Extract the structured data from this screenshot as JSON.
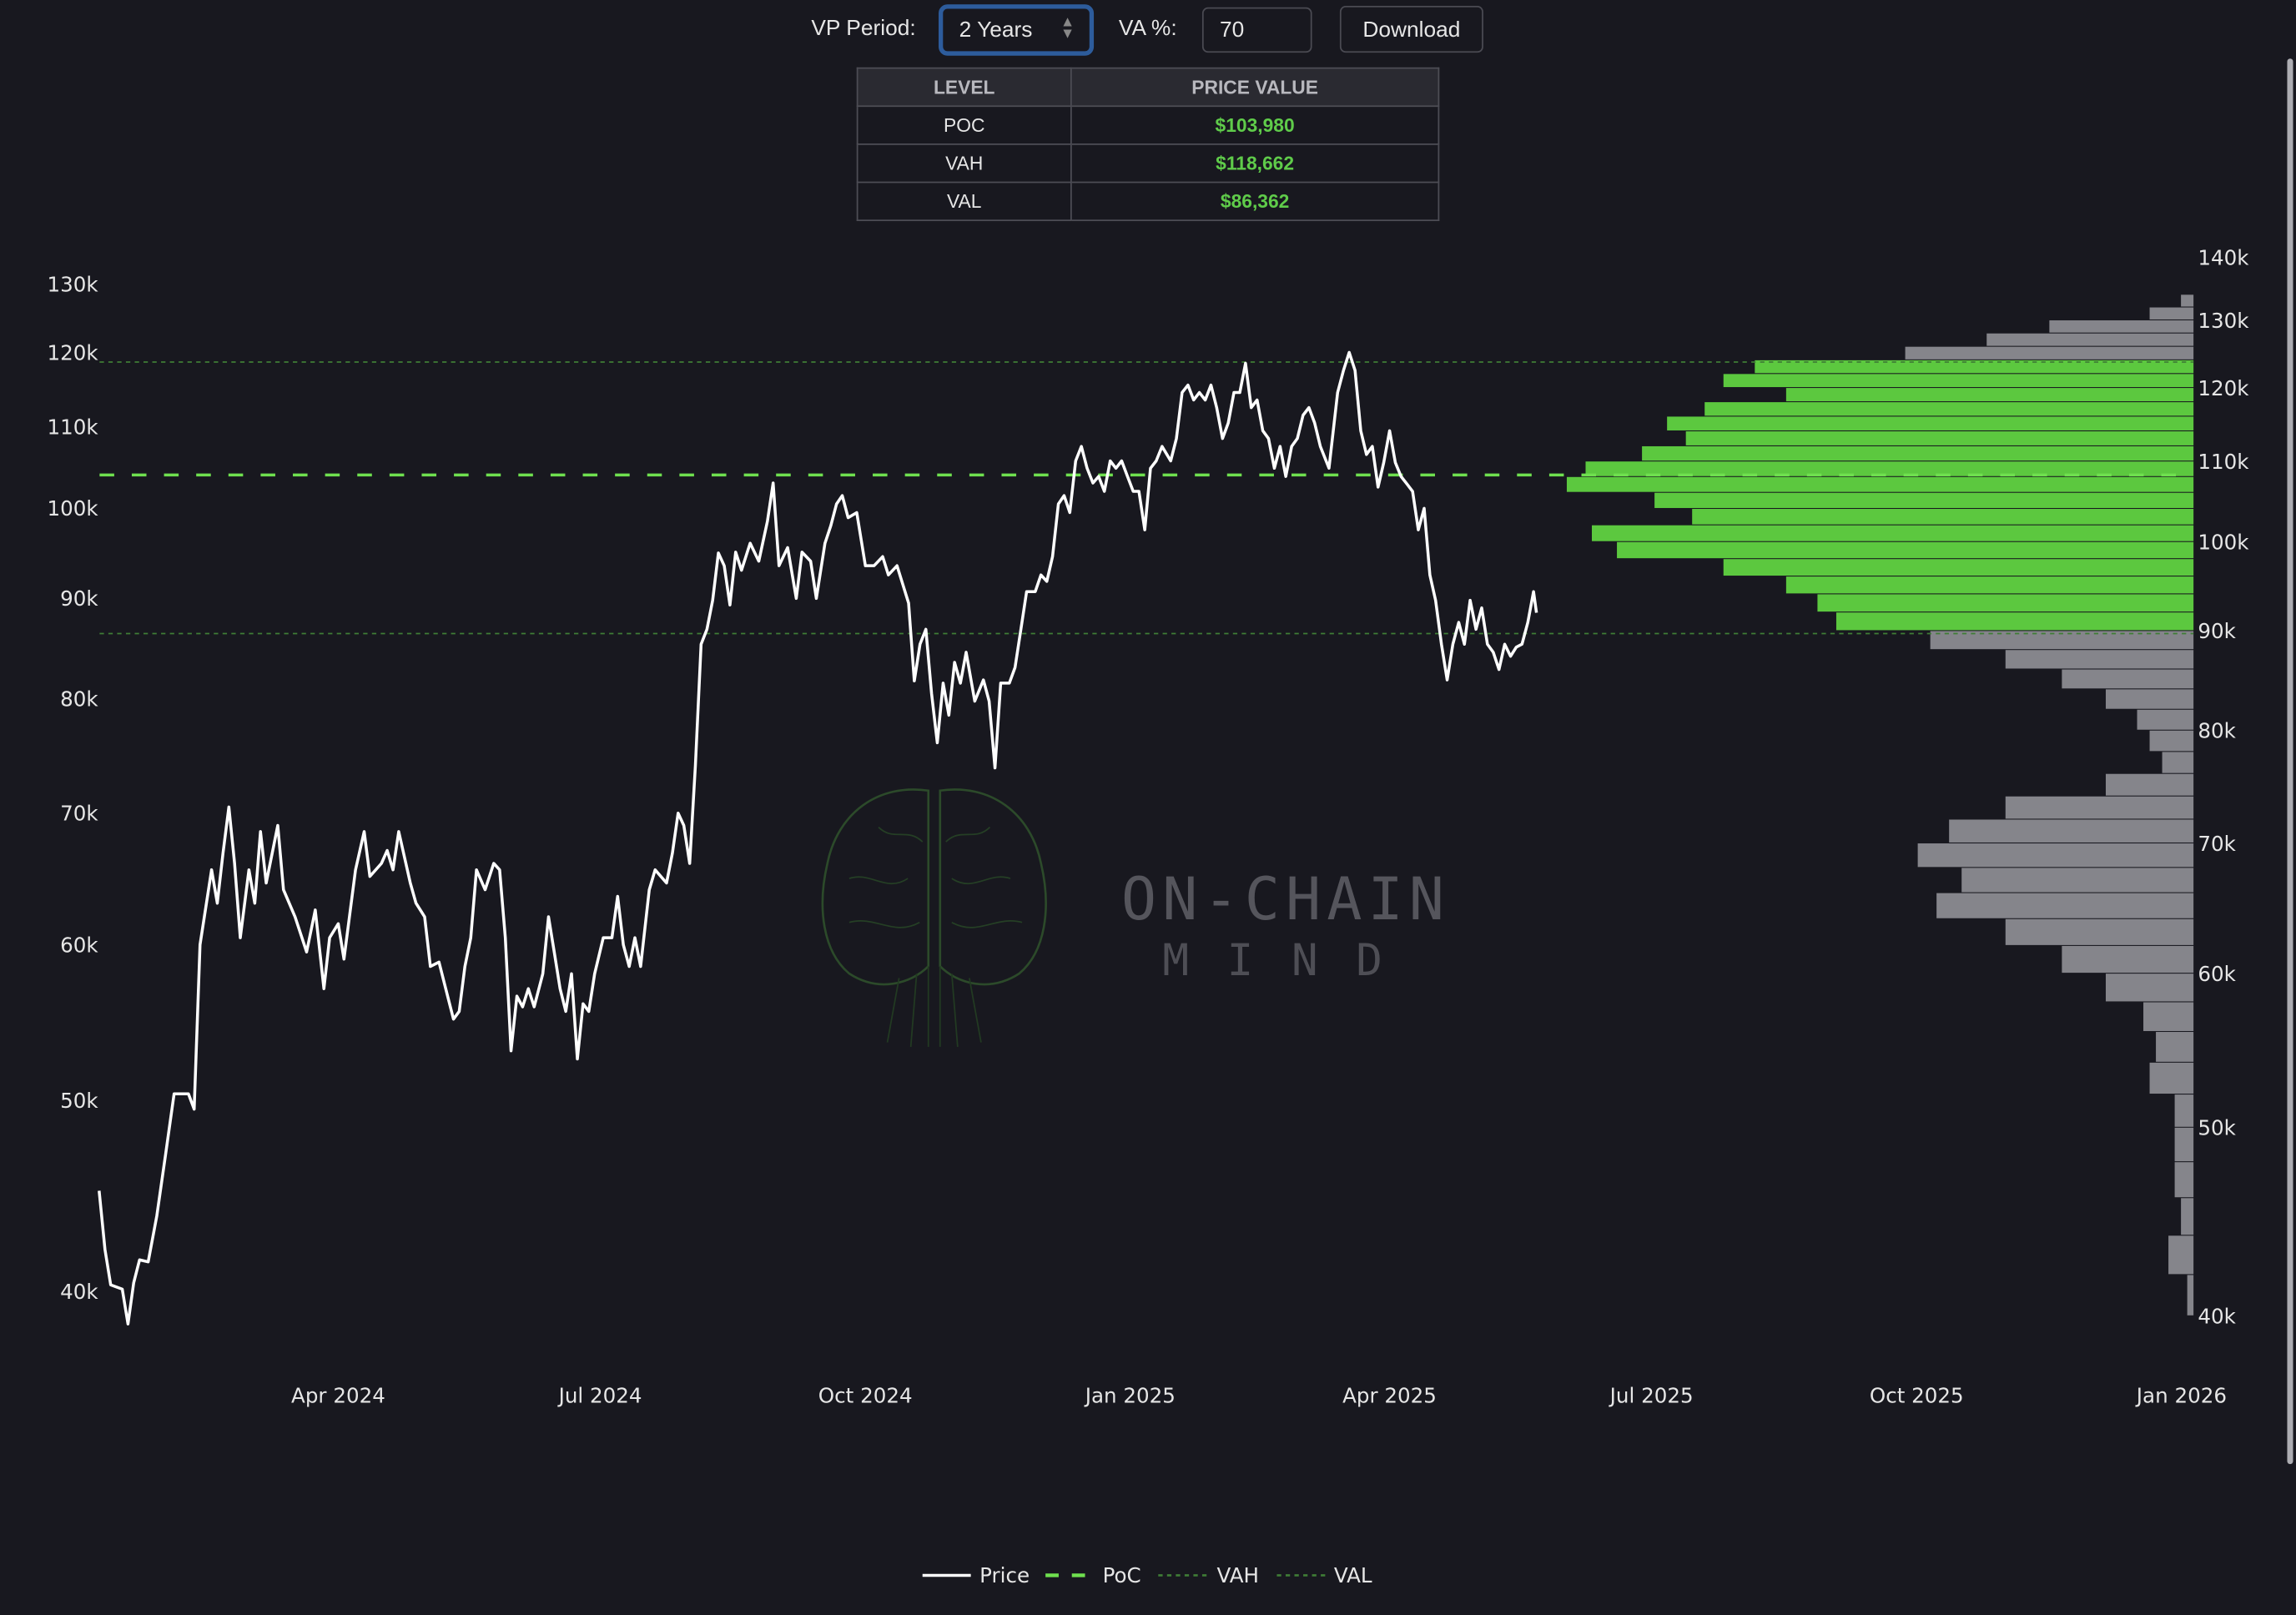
{
  "controls": {
    "vp_period_label": "VP Period:",
    "vp_period_value": "2 Years",
    "va_label": "VA %:",
    "va_value": "70",
    "download_label": "Download"
  },
  "levels_table": {
    "headers": [
      "LEVEL",
      "PRICE VALUE"
    ],
    "rows": [
      {
        "level": "POC",
        "value": "$103,980"
      },
      {
        "level": "VAH",
        "value": "$118,662"
      },
      {
        "level": "VAL",
        "value": "$86,362"
      }
    ]
  },
  "watermark": {
    "line1": "ON-CHAIN",
    "line2": "MIND"
  },
  "colors": {
    "background": "#18181f",
    "price": "#ffffff",
    "poc": "#6fe04f",
    "va_lines": "#3f7d36",
    "value_area": "#5cc83f",
    "profile_outside": "#85858b",
    "value_text": "#5fcb4a",
    "select_focus": "#2d5c9c"
  },
  "chart_data": {
    "type": "line",
    "title": "",
    "y_scale": "log",
    "left_axis": {
      "ticks": [
        40000,
        50000,
        60000,
        70000,
        80000,
        90000,
        100000,
        110000,
        120000,
        130000
      ],
      "tick_labels": [
        "40k",
        "50k",
        "60k",
        "70k",
        "80k",
        "90k",
        "100k",
        "110k",
        "120k",
        "130k"
      ]
    },
    "right_axis": {
      "ticks": [
        40000,
        50000,
        60000,
        70000,
        80000,
        90000,
        100000,
        110000,
        120000,
        130000,
        140000
      ],
      "tick_labels": [
        "40k",
        "50k",
        "60k",
        "70k",
        "80k",
        "90k",
        "100k",
        "110k",
        "120k",
        "130k",
        "140k"
      ]
    },
    "x_axis": {
      "ticks": [
        "2024-04-01",
        "2024-07-01",
        "2024-10-01",
        "2025-01-01",
        "2025-04-01",
        "2025-07-01",
        "2025-10-01",
        "2026-01-01"
      ],
      "tick_labels": [
        "Apr 2024",
        "Jul 2024",
        "Oct 2024",
        "Jan 2025",
        "Apr 2025",
        "Jul 2025",
        "Oct 2025",
        "Jan 2026"
      ]
    },
    "legend": {
      "placement": "bottom",
      "entries": [
        "Price",
        "PoC",
        "VAH",
        "VAL"
      ]
    },
    "levels": {
      "poc": 103980,
      "vah": 118662,
      "val": 86362
    },
    "price": [
      [
        "2024-01-09",
        45000
      ],
      [
        "2024-01-11",
        42000
      ],
      [
        "2024-01-13",
        40300
      ],
      [
        "2024-01-17",
        40100
      ],
      [
        "2024-01-19",
        38500
      ],
      [
        "2024-01-21",
        40400
      ],
      [
        "2024-01-23",
        41500
      ],
      [
        "2024-01-26",
        41400
      ],
      [
        "2024-01-29",
        43700
      ],
      [
        "2024-02-01",
        46900
      ],
      [
        "2024-02-04",
        50400
      ],
      [
        "2024-02-09",
        50400
      ],
      [
        "2024-02-11",
        49500
      ],
      [
        "2024-02-13",
        60000
      ],
      [
        "2024-02-17",
        65500
      ],
      [
        "2024-02-19",
        63000
      ],
      [
        "2024-02-21",
        66800
      ],
      [
        "2024-02-23",
        70500
      ],
      [
        "2024-02-25",
        66000
      ],
      [
        "2024-02-27",
        60500
      ],
      [
        "2024-03-01",
        65500
      ],
      [
        "2024-03-03",
        63000
      ],
      [
        "2024-03-05",
        68500
      ],
      [
        "2024-03-07",
        64500
      ],
      [
        "2024-03-11",
        69000
      ],
      [
        "2024-03-13",
        64000
      ],
      [
        "2024-03-17",
        62000
      ],
      [
        "2024-03-21",
        59500
      ],
      [
        "2024-03-24",
        62500
      ],
      [
        "2024-03-27",
        57000
      ],
      [
        "2024-03-29",
        60500
      ],
      [
        "2024-04-01",
        61500
      ],
      [
        "2024-04-03",
        59000
      ],
      [
        "2024-04-07",
        65500
      ],
      [
        "2024-04-10",
        68500
      ],
      [
        "2024-04-12",
        65000
      ],
      [
        "2024-04-16",
        66000
      ],
      [
        "2024-04-18",
        67000
      ],
      [
        "2024-04-20",
        65500
      ],
      [
        "2024-04-22",
        68500
      ],
      [
        "2024-04-26",
        64500
      ],
      [
        "2024-04-28",
        63000
      ],
      [
        "2024-05-01",
        62000
      ],
      [
        "2024-05-03",
        58500
      ],
      [
        "2024-05-06",
        58800
      ],
      [
        "2024-05-09",
        56500
      ],
      [
        "2024-05-11",
        55000
      ],
      [
        "2024-05-13",
        55500
      ],
      [
        "2024-05-15",
        58500
      ],
      [
        "2024-05-17",
        60500
      ],
      [
        "2024-05-19",
        65500
      ],
      [
        "2024-05-22",
        64000
      ],
      [
        "2024-05-25",
        66000
      ],
      [
        "2024-05-27",
        65500
      ],
      [
        "2024-05-29",
        60500
      ],
      [
        "2024-05-31",
        53000
      ],
      [
        "2024-06-02",
        56500
      ],
      [
        "2024-06-04",
        55800
      ],
      [
        "2024-06-06",
        57000
      ],
      [
        "2024-06-08",
        55800
      ],
      [
        "2024-06-11",
        58000
      ],
      [
        "2024-06-13",
        62000
      ],
      [
        "2024-06-15",
        59500
      ],
      [
        "2024-06-17",
        57000
      ],
      [
        "2024-06-19",
        55500
      ],
      [
        "2024-06-21",
        58000
      ],
      [
        "2024-06-23",
        52500
      ],
      [
        "2024-06-25",
        56000
      ],
      [
        "2024-06-27",
        55500
      ],
      [
        "2024-06-29",
        58000
      ],
      [
        "2024-07-02",
        60500
      ],
      [
        "2024-07-05",
        60500
      ],
      [
        "2024-07-07",
        63500
      ],
      [
        "2024-07-09",
        60000
      ],
      [
        "2024-07-11",
        58500
      ],
      [
        "2024-07-13",
        60500
      ],
      [
        "2024-07-15",
        58500
      ],
      [
        "2024-07-18",
        64000
      ],
      [
        "2024-07-20",
        65500
      ],
      [
        "2024-07-24",
        64500
      ],
      [
        "2024-07-26",
        66800
      ],
      [
        "2024-07-28",
        70000
      ],
      [
        "2024-07-30",
        69000
      ],
      [
        "2024-08-01",
        66000
      ],
      [
        "2024-08-03",
        74000
      ],
      [
        "2024-08-05",
        85300
      ],
      [
        "2024-08-07",
        86800
      ],
      [
        "2024-08-09",
        89800
      ],
      [
        "2024-08-11",
        94900
      ],
      [
        "2024-08-13",
        93500
      ],
      [
        "2024-08-15",
        89300
      ],
      [
        "2024-08-17",
        95000
      ],
      [
        "2024-08-19",
        93000
      ],
      [
        "2024-08-22",
        96000
      ],
      [
        "2024-08-25",
        94000
      ],
      [
        "2024-08-28",
        98500
      ],
      [
        "2024-08-30",
        103000
      ],
      [
        "2024-09-01",
        93500
      ],
      [
        "2024-09-04",
        95500
      ],
      [
        "2024-09-07",
        90000
      ],
      [
        "2024-09-09",
        95000
      ],
      [
        "2024-09-12",
        94000
      ],
      [
        "2024-09-14",
        90000
      ],
      [
        "2024-09-17",
        96000
      ],
      [
        "2024-09-19",
        98000
      ],
      [
        "2024-09-21",
        100500
      ],
      [
        "2024-09-23",
        101500
      ],
      [
        "2024-09-25",
        98900
      ],
      [
        "2024-09-28",
        99500
      ],
      [
        "2024-10-01",
        93500
      ],
      [
        "2024-10-04",
        93500
      ],
      [
        "2024-10-07",
        94500
      ],
      [
        "2024-10-09",
        92500
      ],
      [
        "2024-10-12",
        93500
      ],
      [
        "2024-10-14",
        91500
      ],
      [
        "2024-10-16",
        89500
      ],
      [
        "2024-10-18",
        81700
      ],
      [
        "2024-10-20",
        85300
      ],
      [
        "2024-10-22",
        86800
      ],
      [
        "2024-10-24",
        80500
      ],
      [
        "2024-10-26",
        76000
      ],
      [
        "2024-10-28",
        81500
      ],
      [
        "2024-10-30",
        78500
      ],
      [
        "2024-11-01",
        83500
      ],
      [
        "2024-11-03",
        81500
      ],
      [
        "2024-11-05",
        84500
      ],
      [
        "2024-11-08",
        79800
      ],
      [
        "2024-11-11",
        81800
      ],
      [
        "2024-11-13",
        79800
      ],
      [
        "2024-11-15",
        73800
      ],
      [
        "2024-11-17",
        81500
      ],
      [
        "2024-11-20",
        81500
      ],
      [
        "2024-11-22",
        83000
      ],
      [
        "2024-11-24",
        86800
      ],
      [
        "2024-11-26",
        90700
      ],
      [
        "2024-11-29",
        90700
      ],
      [
        "2024-12-01",
        92500
      ],
      [
        "2024-12-03",
        91800
      ],
      [
        "2024-12-05",
        94500
      ],
      [
        "2024-12-07",
        100500
      ],
      [
        "2024-12-09",
        101500
      ],
      [
        "2024-12-11",
        99500
      ],
      [
        "2024-12-13",
        105700
      ],
      [
        "2024-12-15",
        107500
      ],
      [
        "2024-12-17",
        104800
      ],
      [
        "2024-12-19",
        103000
      ],
      [
        "2024-12-21",
        103800
      ],
      [
        "2024-12-23",
        102000
      ],
      [
        "2024-12-25",
        105700
      ],
      [
        "2024-12-27",
        104800
      ],
      [
        "2024-12-29",
        105700
      ],
      [
        "2024-12-31",
        103800
      ],
      [
        "2025-01-02",
        102000
      ],
      [
        "2025-01-04",
        102000
      ],
      [
        "2025-01-06",
        97500
      ],
      [
        "2025-01-08",
        104800
      ],
      [
        "2025-01-10",
        105700
      ],
      [
        "2025-01-12",
        107500
      ],
      [
        "2025-01-15",
        105700
      ],
      [
        "2025-01-17",
        108500
      ],
      [
        "2025-01-19",
        114500
      ],
      [
        "2025-01-21",
        115500
      ],
      [
        "2025-01-23",
        113500
      ],
      [
        "2025-01-25",
        114500
      ],
      [
        "2025-01-27",
        113500
      ],
      [
        "2025-01-29",
        115500
      ],
      [
        "2025-01-31",
        112500
      ],
      [
        "2025-02-02",
        108500
      ],
      [
        "2025-02-04",
        110500
      ],
      [
        "2025-02-06",
        114500
      ],
      [
        "2025-02-08",
        114500
      ],
      [
        "2025-02-10",
        118500
      ],
      [
        "2025-02-12",
        112500
      ],
      [
        "2025-02-14",
        113500
      ],
      [
        "2025-02-16",
        109500
      ],
      [
        "2025-02-18",
        108500
      ],
      [
        "2025-02-20",
        104800
      ],
      [
        "2025-02-22",
        107500
      ],
      [
        "2025-02-24",
        103800
      ],
      [
        "2025-02-26",
        107500
      ],
      [
        "2025-02-28",
        108500
      ],
      [
        "2025-03-02",
        111500
      ],
      [
        "2025-03-04",
        112500
      ],
      [
        "2025-03-06",
        110500
      ],
      [
        "2025-03-08",
        107500
      ],
      [
        "2025-03-11",
        104800
      ],
      [
        "2025-03-14",
        114500
      ],
      [
        "2025-03-16",
        117500
      ],
      [
        "2025-03-18",
        120000
      ],
      [
        "2025-03-20",
        117500
      ],
      [
        "2025-03-22",
        109500
      ],
      [
        "2025-03-24",
        106500
      ],
      [
        "2025-03-26",
        107500
      ],
      [
        "2025-03-28",
        102500
      ],
      [
        "2025-03-30",
        105500
      ],
      [
        "2025-04-01",
        109500
      ],
      [
        "2025-04-03",
        105500
      ],
      [
        "2025-04-05",
        103800
      ],
      [
        "2025-04-07",
        102900
      ],
      [
        "2025-04-09",
        102000
      ],
      [
        "2025-04-11",
        97500
      ],
      [
        "2025-04-13",
        100000
      ],
      [
        "2025-04-15",
        92500
      ],
      [
        "2025-04-17",
        89800
      ],
      [
        "2025-04-19",
        85300
      ],
      [
        "2025-04-21",
        81800
      ],
      [
        "2025-04-23",
        85300
      ],
      [
        "2025-04-25",
        87500
      ],
      [
        "2025-04-27",
        85300
      ],
      [
        "2025-04-29",
        89800
      ],
      [
        "2025-05-01",
        86800
      ],
      [
        "2025-05-03",
        89000
      ],
      [
        "2025-05-05",
        85300
      ],
      [
        "2025-05-07",
        84500
      ],
      [
        "2025-05-09",
        82800
      ],
      [
        "2025-05-11",
        85300
      ],
      [
        "2025-05-13",
        84100
      ],
      [
        "2025-05-15",
        85000
      ],
      [
        "2025-05-17",
        85300
      ],
      [
        "2025-05-19",
        87500
      ],
      [
        "2025-05-21",
        90700
      ],
      [
        "2025-05-22",
        88500
      ]
    ],
    "volume_profile": {
      "axis": "right",
      "bin_width": 2000,
      "bin_centers": [
        133000,
        131000,
        129000,
        127000,
        125000,
        123000,
        121000,
        119000,
        117000,
        115000,
        113000,
        111000,
        109000,
        107000,
        105000,
        103000,
        101000,
        99000,
        97000,
        95000,
        93000,
        91000,
        89000,
        87000,
        85000,
        83000,
        81000,
        79000,
        77000,
        75000,
        73000,
        71000,
        69000,
        67000,
        65000,
        63000,
        61000,
        59000,
        57000,
        55000,
        53000,
        51000,
        49000,
        47000,
        45000,
        43000,
        41000
      ],
      "relative_volume": [
        2,
        7,
        23,
        33,
        46,
        70,
        75,
        65,
        78,
        84,
        81,
        88,
        97,
        100,
        86,
        80,
        96,
        92,
        75,
        65,
        60,
        57,
        42,
        30,
        21,
        14,
        9,
        7,
        5,
        14,
        30,
        39,
        44,
        37,
        41,
        30,
        21,
        14,
        8,
        6,
        7,
        3,
        3,
        3,
        2,
        4,
        1
      ]
    }
  }
}
